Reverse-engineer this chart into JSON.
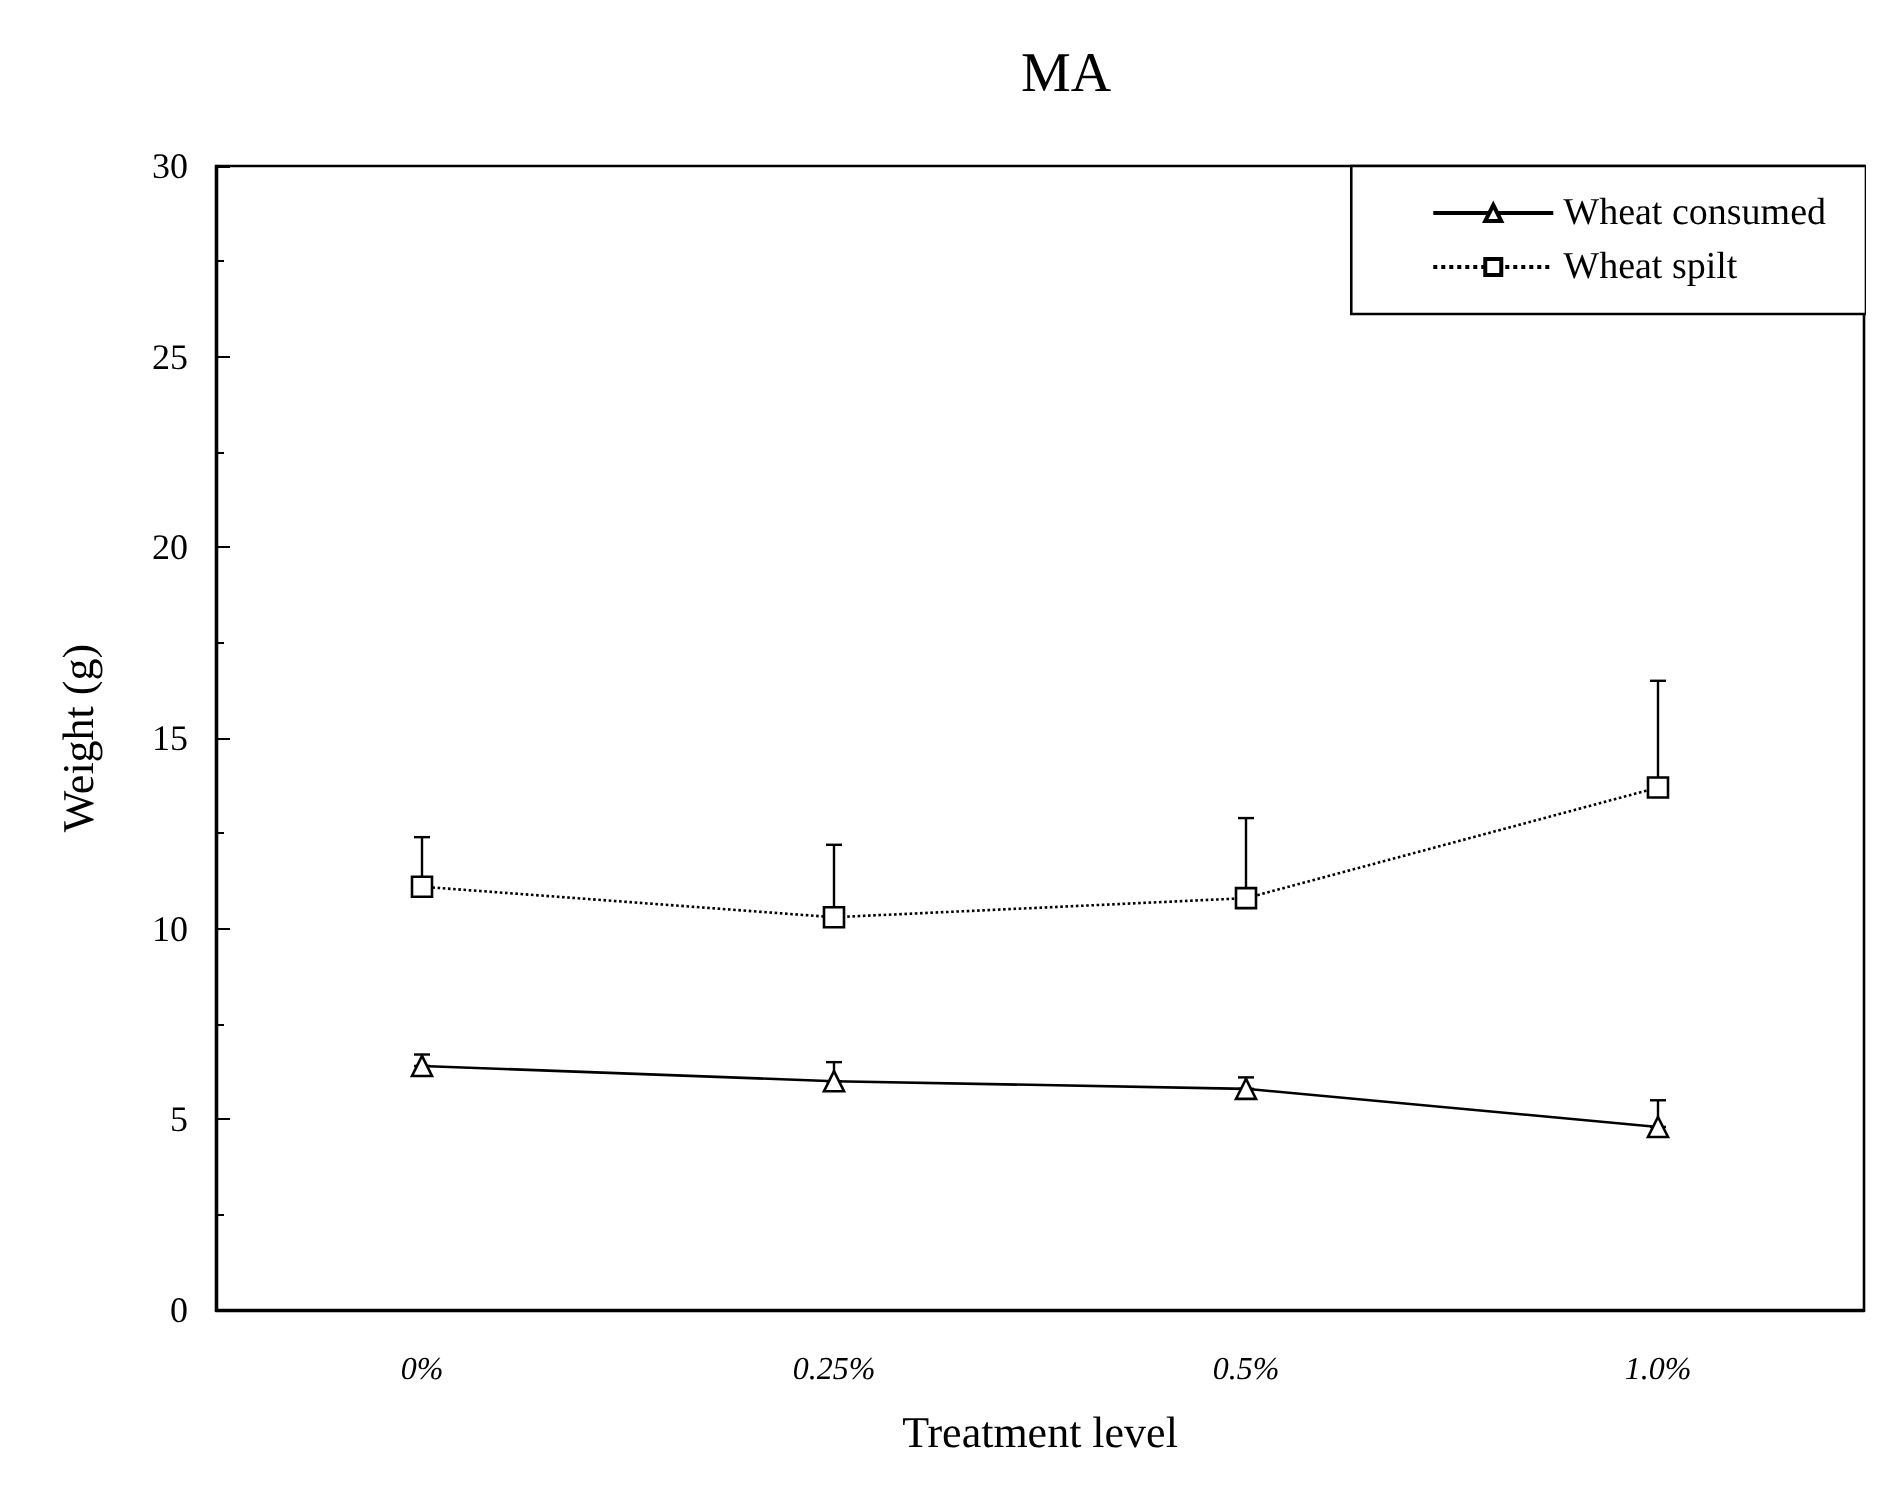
{
  "chart_data": {
    "type": "line",
    "title": "MA",
    "xlabel": "Treatment level",
    "ylabel": "Weight (g)",
    "categories": [
      "0%",
      "0.25%",
      "0.5%",
      "1.0%"
    ],
    "ylim": [
      0,
      30
    ],
    "yticks": [
      0,
      5,
      10,
      15,
      20,
      25,
      30
    ],
    "grid": false,
    "legend": "top right",
    "series": [
      {
        "name": "Wheat consumed",
        "color": "#000000",
        "marker": "triangle",
        "line_style": "solid",
        "values": [
          6.4,
          6.0,
          5.8,
          4.8
        ],
        "errors": [
          [
            6.4,
            6.7
          ],
          [
            6.0,
            6.5
          ],
          [
            5.8,
            6.1
          ],
          [
            4.8,
            5.5
          ]
        ]
      },
      {
        "name": "Wheat spilt",
        "color": "#000000",
        "marker": "square",
        "line_style": "dotted",
        "values": [
          11.1,
          10.3,
          10.8,
          13.7
        ],
        "errors": [
          [
            11.1,
            12.4
          ],
          [
            10.3,
            12.2
          ],
          [
            10.8,
            12.9
          ],
          [
            13.7,
            16.5
          ]
        ]
      }
    ]
  }
}
